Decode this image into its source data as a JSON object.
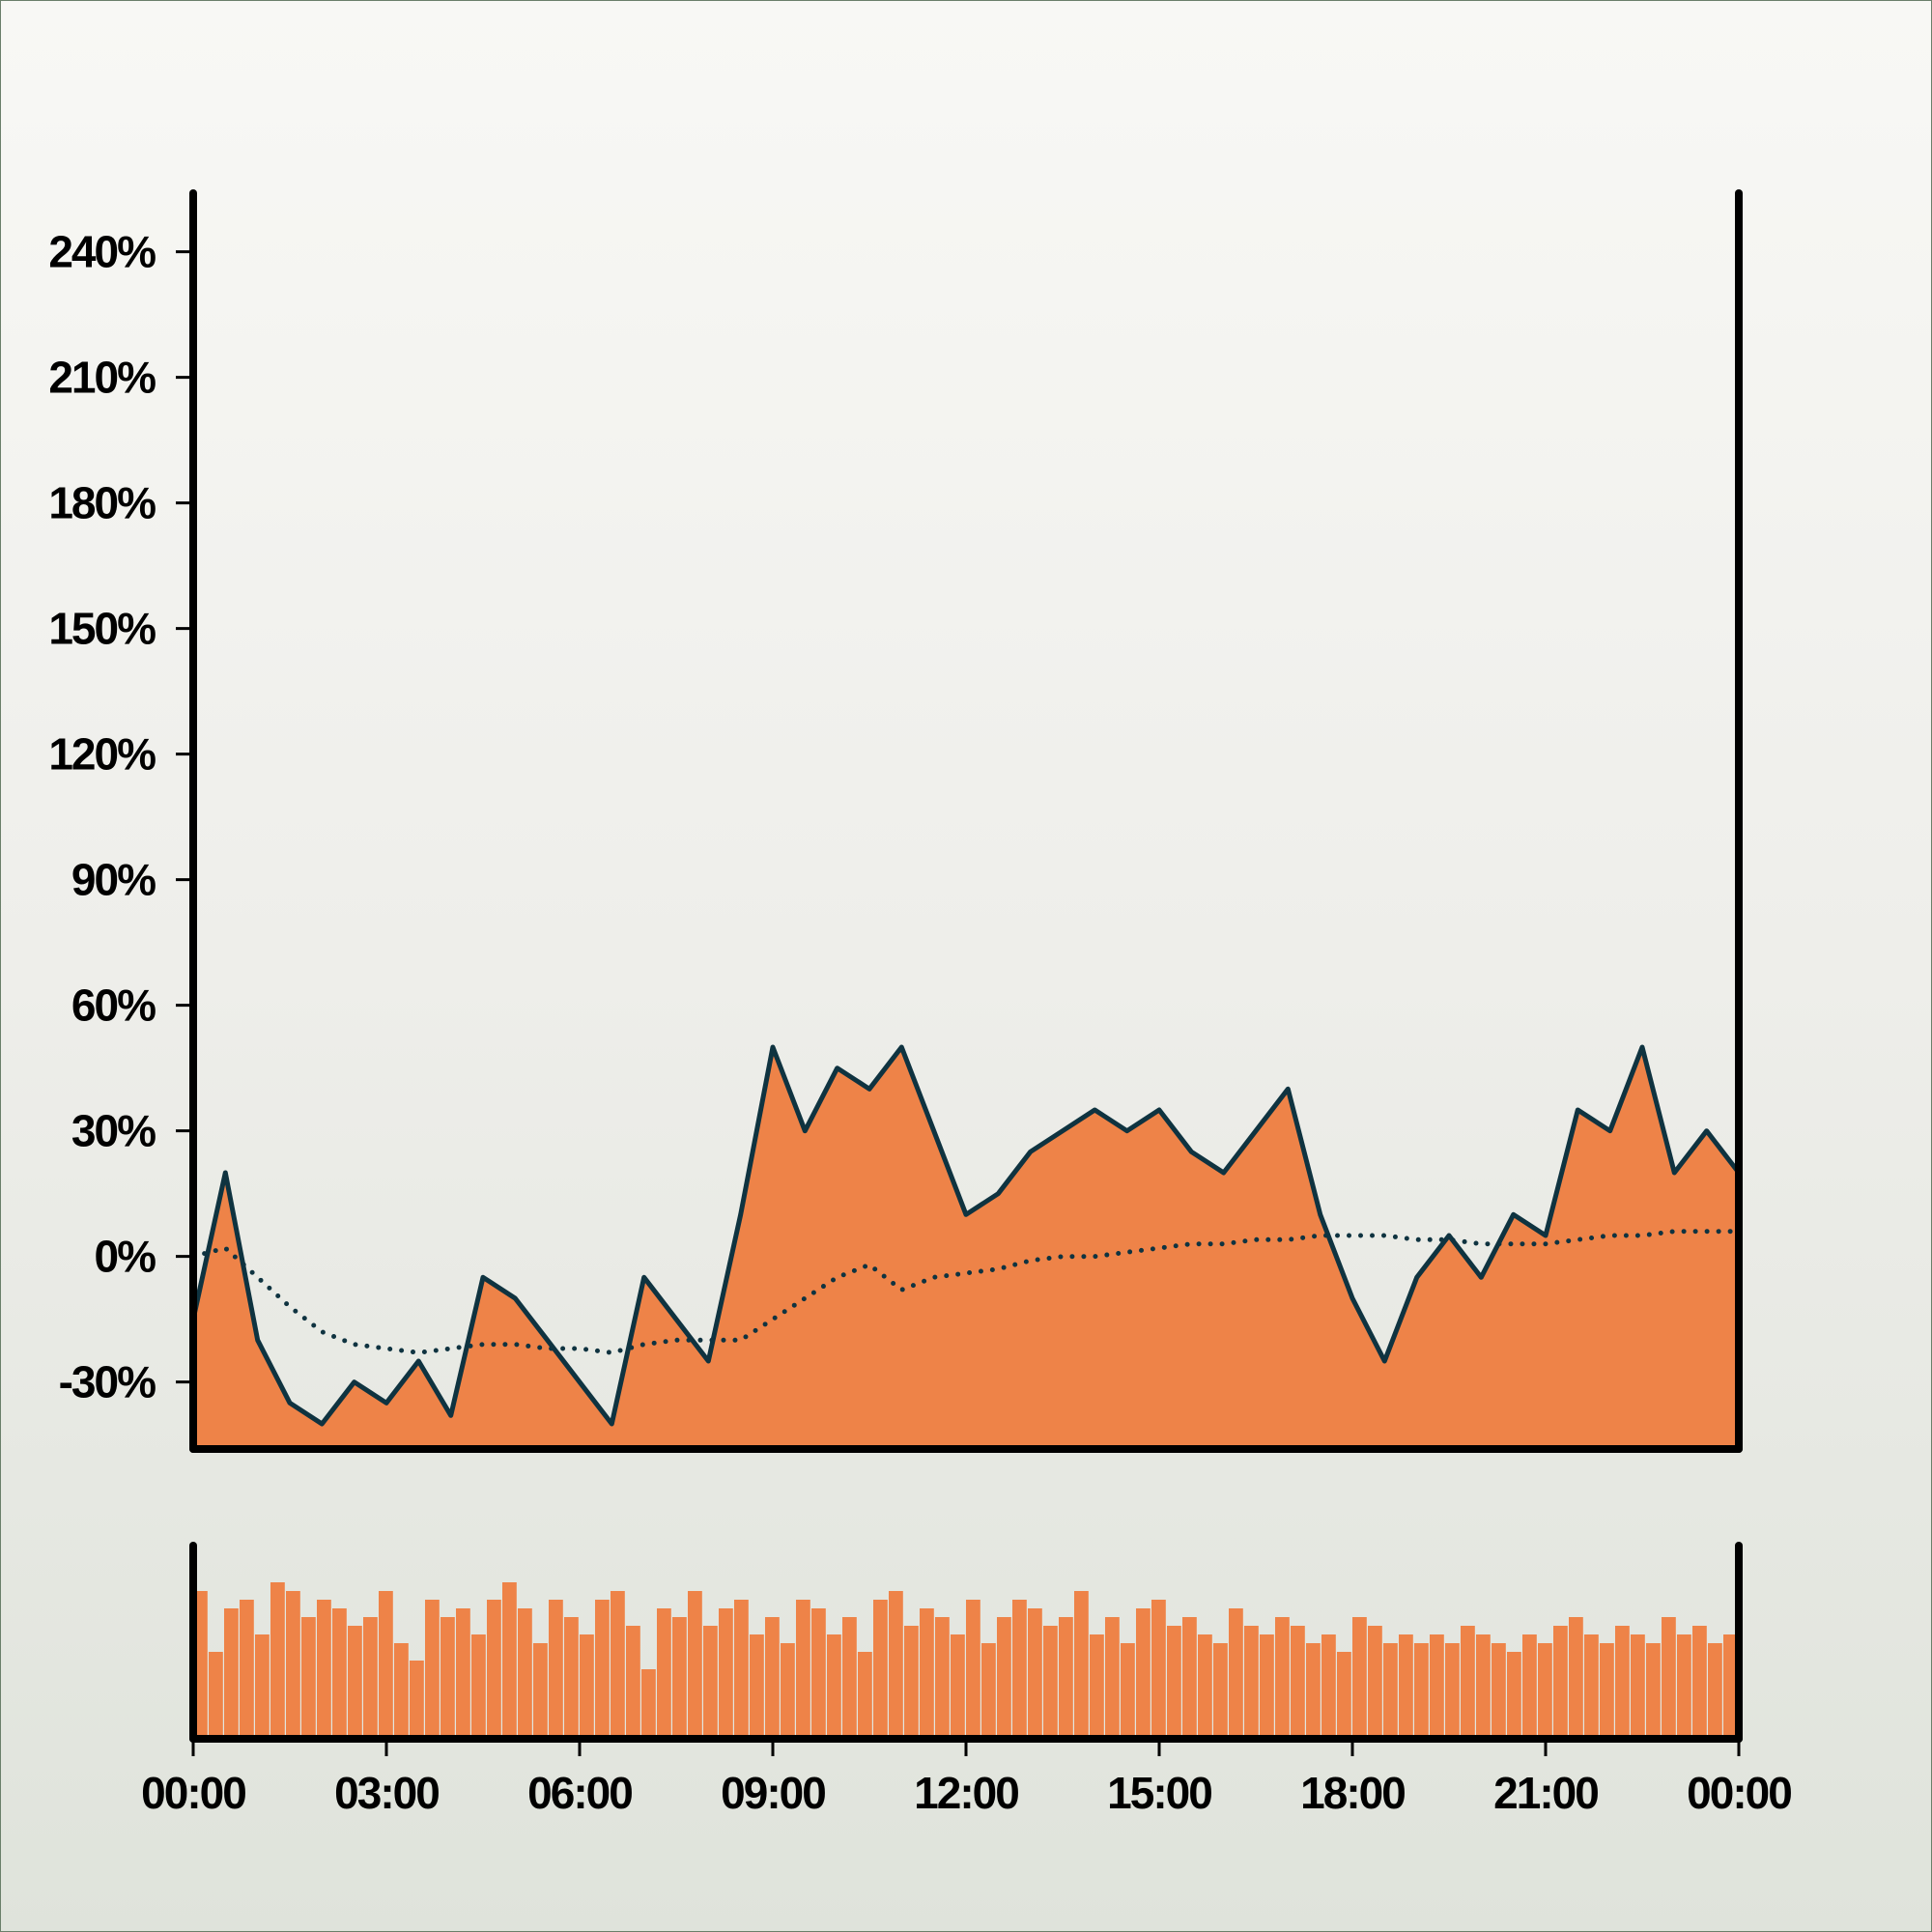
{
  "chart_data": [
    {
      "type": "area",
      "name": "main-panel",
      "title": "",
      "xlabel": "",
      "ylabel": "",
      "y_tick_labels": [
        "240%",
        "210%",
        "180%",
        "150%",
        "120%",
        "90%",
        "60%",
        "30%",
        "0%",
        "-30%"
      ],
      "y_ticks": [
        240,
        210,
        180,
        150,
        120,
        90,
        60,
        30,
        0,
        -30
      ],
      "ylim": [
        -46,
        254
      ],
      "xlim_hours": [
        0,
        24
      ],
      "grid": false,
      "legend": "none",
      "series": [
        {
          "style": "filled step-like area with dark outline",
          "x_hours": [
            0,
            0.5,
            1,
            1.5,
            2,
            2.5,
            3,
            3.5,
            4,
            4.5,
            5,
            5.5,
            6,
            6.5,
            7,
            7.5,
            8,
            8.5,
            9,
            9.5,
            10,
            10.5,
            11,
            11.5,
            12,
            12.5,
            13,
            13.5,
            14,
            14.5,
            15,
            15.5,
            16,
            16.5,
            17,
            17.5,
            18,
            18.5,
            19,
            19.5,
            20,
            20.5,
            21,
            21.5,
            22,
            22.5,
            23,
            23.5,
            24
          ],
          "values": [
            -15,
            20,
            -20,
            -35,
            -40,
            -30,
            -35,
            -25,
            -38,
            -5,
            -10,
            -20,
            -30,
            -40,
            -5,
            -15,
            -25,
            10,
            50,
            30,
            45,
            40,
            50,
            30,
            10,
            15,
            25,
            30,
            35,
            30,
            35,
            25,
            20,
            30,
            40,
            10,
            -10,
            -25,
            -5,
            5,
            -5,
            10,
            5,
            35,
            30,
            50,
            20,
            30,
            20
          ]
        },
        {
          "style": "dotted trend line",
          "x_hours": [
            0,
            0.5,
            1,
            1.5,
            2,
            2.5,
            3,
            3.5,
            4,
            4.5,
            5,
            5.5,
            6,
            6.5,
            7,
            7.5,
            8,
            8.5,
            9,
            9.5,
            10,
            10.5,
            11,
            11.5,
            12,
            12.5,
            13,
            13.5,
            14,
            14.5,
            15,
            15.5,
            16,
            16.5,
            17,
            17.5,
            18,
            18.5,
            19,
            19.5,
            20,
            20.5,
            21,
            21.5,
            22,
            22.5,
            23,
            23.5,
            24
          ],
          "values": [
            0,
            2,
            -5,
            -12,
            -18,
            -21,
            -22,
            -23,
            -22,
            -21,
            -21,
            -22,
            -22,
            -23,
            -21,
            -20,
            -20,
            -20,
            -15,
            -10,
            -5,
            -2,
            -8,
            -5,
            -4,
            -3,
            -1,
            0,
            0,
            1,
            2,
            3,
            3,
            4,
            4,
            5,
            5,
            5,
            4,
            4,
            3,
            3,
            3,
            4,
            5,
            5,
            6,
            6,
            6
          ]
        }
      ]
    },
    {
      "type": "bar",
      "name": "volume-panel",
      "title": "",
      "xlabel": "",
      "ylabel": "",
      "x_tick_labels": [
        "00:00",
        "03:00",
        "06:00",
        "09:00",
        "12:00",
        "15:00",
        "18:00",
        "21:00",
        "00:00"
      ],
      "x_ticks_hours": [
        0,
        3,
        6,
        9,
        12,
        15,
        18,
        21,
        24
      ],
      "ylim": [
        0,
        1
      ],
      "grid": false,
      "legend": "none",
      "values": [
        0.85,
        0.5,
        0.75,
        0.8,
        0.6,
        0.9,
        0.85,
        0.7,
        0.8,
        0.75,
        0.65,
        0.7,
        0.85,
        0.55,
        0.45,
        0.8,
        0.7,
        0.75,
        0.6,
        0.8,
        0.9,
        0.75,
        0.55,
        0.8,
        0.7,
        0.6,
        0.8,
        0.85,
        0.65,
        0.4,
        0.75,
        0.7,
        0.85,
        0.65,
        0.75,
        0.8,
        0.6,
        0.7,
        0.55,
        0.8,
        0.75,
        0.6,
        0.7,
        0.5,
        0.8,
        0.85,
        0.65,
        0.75,
        0.7,
        0.6,
        0.8,
        0.55,
        0.7,
        0.8,
        0.75,
        0.65,
        0.7,
        0.85,
        0.6,
        0.7,
        0.55,
        0.75,
        0.8,
        0.65,
        0.7,
        0.6,
        0.55,
        0.75,
        0.65,
        0.6,
        0.7,
        0.65,
        0.55,
        0.6,
        0.5,
        0.7,
        0.65,
        0.55,
        0.6,
        0.55,
        0.6,
        0.55,
        0.65,
        0.6,
        0.55,
        0.5,
        0.6,
        0.55,
        0.65,
        0.7,
        0.6,
        0.55,
        0.65,
        0.6,
        0.55,
        0.7,
        0.6,
        0.65,
        0.55,
        0.6
      ]
    }
  ]
}
